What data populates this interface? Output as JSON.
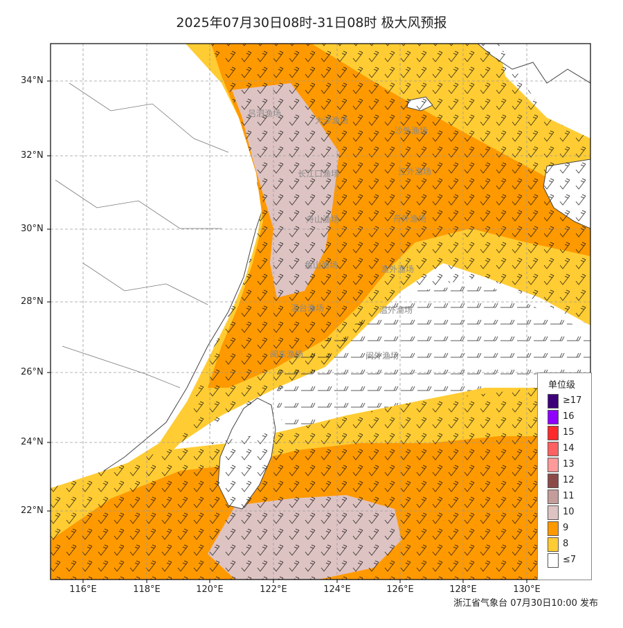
{
  "title": "2025年07月30日08时-31日08时 极大风预报",
  "footer": "浙江省气象台 07月30日10:00 发布",
  "lat_labels": [
    "34°N",
    "32°N",
    "30°N",
    "28°N",
    "26°N",
    "24°N",
    "22°N"
  ],
  "lon_labels": [
    "116°E",
    "118°E",
    "120°E",
    "122°E",
    "124°E",
    "126°E",
    "128°E",
    "130°E"
  ],
  "fishing_grounds": [
    "吕泗渔场",
    "大沙渔场",
    "沙外渔场",
    "长江口渔场",
    "江外渔场",
    "舟山渔场",
    "舟外渔场",
    "鱼山渔场",
    "渔外渔场",
    "温台渔场",
    "温外渔场",
    "闽东渔场",
    "闽外渔场"
  ],
  "legend": {
    "title": "单位级",
    "items": [
      {
        "label": "≥17",
        "color": "#3d0078"
      },
      {
        "label": "16",
        "color": "#8f00ff"
      },
      {
        "label": "15",
        "color": "#ff2a2a"
      },
      {
        "label": "14",
        "color": "#ff6060"
      },
      {
        "label": "13",
        "color": "#ff9a9a"
      },
      {
        "label": "12",
        "color": "#8b4a48"
      },
      {
        "label": "11",
        "color": "#c49d9a"
      },
      {
        "label": "10",
        "color": "#dec3c3"
      },
      {
        "label": "9",
        "color": "#ff9900"
      },
      {
        "label": "8",
        "color": "#ffcc33"
      },
      {
        "label": "≤7",
        "color": "#ffffff"
      }
    ]
  }
}
